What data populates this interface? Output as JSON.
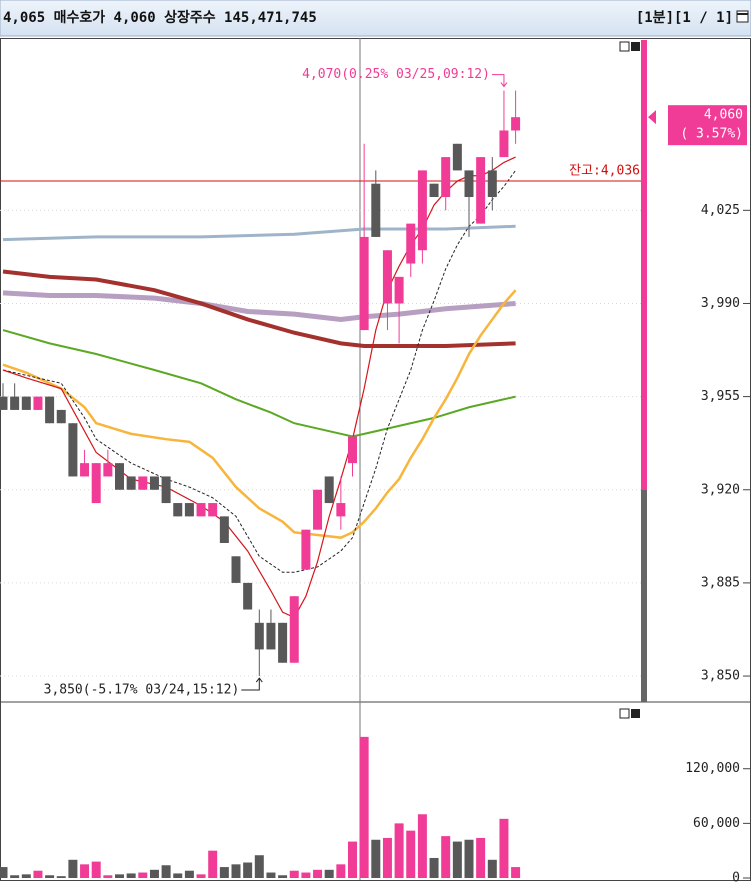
{
  "header": {
    "quote": "4,065 매수호가 4,060 상장주수 145,471,745",
    "period": "[1분][1 / 1]"
  },
  "chart_data": [
    {
      "type": "candlestick",
      "up_color": "#f03c96",
      "down_color": "#585858",
      "ylim": [
        3841,
        4089
      ],
      "yticks": [
        {
          "value": 3850,
          "label": "3,850"
        },
        {
          "value": 3885,
          "label": "3,885"
        },
        {
          "value": 3920,
          "label": "3,920"
        },
        {
          "value": 3955,
          "label": "3,955"
        },
        {
          "value": 3990,
          "label": "3,990"
        },
        {
          "value": 4025,
          "label": "4,025"
        }
      ],
      "grid": true,
      "open": [
        3955,
        3955,
        3955,
        3950,
        3955,
        3950,
        3945,
        3925,
        3915,
        3925,
        3930,
        3925,
        3920,
        3925,
        3925,
        3915,
        3915,
        3910,
        3910,
        3910,
        3895,
        3885,
        3870,
        3870,
        3870,
        3855,
        3890,
        3905,
        3925,
        3910,
        3930,
        3980,
        4035,
        3990,
        3990,
        4005,
        4010,
        4035,
        4030,
        4050,
        4040,
        4020,
        4040,
        4045,
        4055
      ],
      "high": [
        3960,
        3960,
        3955,
        3955,
        3955,
        3950,
        3945,
        3935,
        3930,
        3935,
        3930,
        3925,
        3925,
        3925,
        3925,
        3915,
        3915,
        3915,
        3915,
        3910,
        3895,
        3885,
        3875,
        3875,
        3870,
        3880,
        3905,
        3920,
        3925,
        3925,
        3940,
        4050,
        4040,
        4010,
        4000,
        4020,
        4040,
        4035,
        4045,
        4050,
        4040,
        4045,
        4045,
        4070,
        4070
      ],
      "low": [
        3950,
        3950,
        3950,
        3950,
        3945,
        3945,
        3925,
        3925,
        3915,
        3925,
        3920,
        3920,
        3920,
        3920,
        3915,
        3910,
        3910,
        3910,
        3910,
        3900,
        3885,
        3875,
        3850,
        3860,
        3855,
        3855,
        3890,
        3905,
        3915,
        3905,
        3925,
        3980,
        4015,
        3980,
        3975,
        4000,
        4005,
        4030,
        4025,
        4040,
        4015,
        4020,
        4025,
        4045,
        4050
      ],
      "close": [
        3950,
        3950,
        3950,
        3955,
        3945,
        3945,
        3925,
        3930,
        3930,
        3930,
        3920,
        3920,
        3925,
        3920,
        3915,
        3910,
        3910,
        3915,
        3915,
        3900,
        3885,
        3875,
        3860,
        3860,
        3855,
        3880,
        3905,
        3920,
        3915,
        3915,
        3940,
        4015,
        4015,
        4010,
        4000,
        4020,
        4040,
        4030,
        4045,
        4040,
        4030,
        4045,
        4030,
        4055,
        4060
      ],
      "lines": [
        {
          "color": "#9fb4c8",
          "width": 3,
          "x": [
            0,
            8,
            17,
            25,
            31,
            38,
            44
          ],
          "values": [
            4014,
            4015,
            4015,
            4016,
            4018,
            4018,
            4019
          ]
        },
        {
          "color": "#b79fc2",
          "width": 5,
          "x": [
            0,
            4,
            8,
            13,
            17,
            21,
            25,
            29,
            31,
            34,
            38,
            44
          ],
          "values": [
            3994,
            3993,
            3993,
            3992,
            3990,
            3987,
            3986,
            3984,
            3985,
            3986,
            3988,
            3990
          ]
        },
        {
          "color": "#a3322f",
          "width": 4,
          "x": [
            0,
            4,
            8,
            13,
            17,
            21,
            25,
            29,
            31,
            34,
            38,
            44
          ],
          "values": [
            4002,
            4000,
            3999,
            3995,
            3990,
            3984,
            3979,
            3975,
            3974,
            3974,
            3974,
            3975
          ]
        },
        {
          "color": "#5aa823",
          "width": 2,
          "x": [
            0,
            4,
            8,
            13,
            17,
            20,
            23,
            25,
            28,
            30,
            31,
            34,
            37,
            40,
            43,
            44
          ],
          "values": [
            3980,
            3975,
            3971,
            3965,
            3960,
            3954,
            3949,
            3945,
            3942,
            3940,
            3941,
            3944,
            3947,
            3951,
            3954,
            3955
          ]
        },
        {
          "color": "#f7b53c",
          "width": 2.5,
          "x": [
            0,
            2,
            3,
            5,
            7,
            8,
            11,
            14,
            16,
            18,
            20,
            22,
            24,
            25,
            27,
            29,
            30,
            31,
            32,
            33,
            34,
            35,
            36,
            37,
            38,
            39,
            40,
            41,
            42,
            43,
            44
          ],
          "values": [
            3967,
            3964,
            3962,
            3958,
            3951,
            3945,
            3941,
            3939,
            3938,
            3932,
            3921,
            3913,
            3908,
            3904,
            3903,
            3902,
            3904,
            3908,
            3913,
            3919,
            3924,
            3932,
            3939,
            3947,
            3954,
            3962,
            3971,
            3978,
            3984,
            3990,
            3995
          ]
        },
        {
          "color": "#222222",
          "width": 1,
          "dash": true,
          "x": [
            0,
            3,
            5,
            7,
            8,
            11,
            14,
            16,
            18,
            20,
            22,
            24,
            25,
            27,
            29,
            30,
            31,
            32,
            33,
            34,
            35,
            36,
            37,
            38,
            39,
            40,
            41,
            42,
            43,
            44
          ],
          "values": [
            3965,
            3962,
            3960,
            3947,
            3939,
            3930,
            3924,
            3921,
            3917,
            3910,
            3895,
            3889,
            3889,
            3891,
            3897,
            3902,
            3915,
            3928,
            3943,
            3954,
            3965,
            3980,
            3991,
            4003,
            4012,
            4019,
            4023,
            4029,
            4034,
            4040
          ]
        },
        {
          "color": "#d4161c",
          "width": 1.2,
          "x": [
            0,
            2,
            5,
            6,
            8,
            11,
            14,
            17,
            19,
            21,
            23,
            24,
            25,
            26,
            27,
            28,
            29,
            30,
            31,
            32,
            33,
            34,
            35,
            36,
            37,
            38,
            39,
            40,
            41,
            42,
            43,
            44
          ],
          "values": [
            3965,
            3962,
            3958,
            3950,
            3934,
            3924,
            3921,
            3914,
            3908,
            3897,
            3882,
            3874,
            3872,
            3880,
            3893,
            3910,
            3924,
            3939,
            3958,
            3980,
            3995,
            4004,
            4012,
            4018,
            4027,
            4032,
            4036,
            4038,
            4038,
            4040,
            4043,
            4045
          ]
        }
      ],
      "hline": {
        "value": 4036,
        "label": "잔고:4,036",
        "color": "#d01010"
      },
      "last_price": {
        "value": 4060,
        "label": "4,060",
        "change_label": "( 3.57%)",
        "color": "#f03c96"
      },
      "annotations": [
        {
          "value": 4070,
          "text": "4,070(0.25% 03/25,09:12)",
          "color": "#f03c96",
          "of": "high"
        },
        {
          "value": 3850,
          "text": "3,850(-5.17% 03/24,15:12)",
          "color": "#222222",
          "of": "low"
        }
      ]
    },
    {
      "type": "bar",
      "ylim": [
        0,
        190000
      ],
      "yticks": [
        0,
        {
          "value": 60000,
          "label": "60,000"
        },
        {
          "value": 120000,
          "label": "120,000"
        }
      ],
      "values": [
        12000,
        3000,
        4000,
        8000,
        3000,
        2000,
        20000,
        15000,
        18000,
        3000,
        4000,
        5000,
        6000,
        9000,
        14000,
        5000,
        8000,
        4000,
        30000,
        12000,
        15000,
        17000,
        25000,
        6000,
        3000,
        8000,
        6000,
        9000,
        9000,
        15000,
        40000,
        155000,
        42000,
        44000,
        60000,
        52000,
        70000,
        22000,
        46000,
        40000,
        42000,
        44000,
        20000,
        65000,
        12000
      ]
    }
  ]
}
